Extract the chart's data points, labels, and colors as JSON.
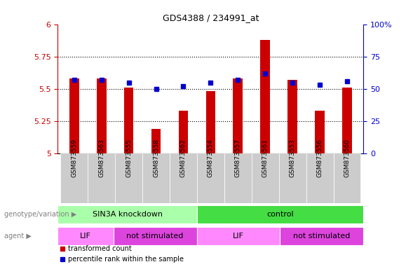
{
  "title": "GDS4388 / 234991_at",
  "samples": [
    "GSM873559",
    "GSM873563",
    "GSM873555",
    "GSM873558",
    "GSM873562",
    "GSM873554",
    "GSM873557",
    "GSM873561",
    "GSM873553",
    "GSM873556",
    "GSM873560"
  ],
  "red_values": [
    5.58,
    5.58,
    5.51,
    5.19,
    5.33,
    5.48,
    5.58,
    5.88,
    5.57,
    5.33,
    5.51
  ],
  "blue_values": [
    57,
    57,
    55,
    50,
    52,
    55,
    57,
    62,
    55,
    53,
    56
  ],
  "ylim_left": [
    5.0,
    6.0
  ],
  "ylim_right": [
    0,
    100
  ],
  "yticks_left": [
    5.0,
    5.25,
    5.5,
    5.75,
    6.0
  ],
  "yticks_right": [
    0,
    25,
    50,
    75,
    100
  ],
  "ytick_labels_left": [
    "5",
    "5.25",
    "5.5",
    "5.75",
    "6"
  ],
  "ytick_labels_right": [
    "0",
    "25",
    "50",
    "75",
    "100%"
  ],
  "groups": [
    {
      "label": "SIN3A knockdown",
      "start": 0,
      "end": 5,
      "color": "#AAFFAA"
    },
    {
      "label": "control",
      "start": 5,
      "end": 11,
      "color": "#44DD44"
    }
  ],
  "agents": [
    {
      "label": "LIF",
      "start": 0,
      "end": 2,
      "color": "#FF88FF"
    },
    {
      "label": "not stimulated",
      "start": 2,
      "end": 5,
      "color": "#DD44DD"
    },
    {
      "label": "LIF",
      "start": 5,
      "end": 8,
      "color": "#FF88FF"
    },
    {
      "label": "not stimulated",
      "start": 8,
      "end": 11,
      "color": "#DD44DD"
    }
  ],
  "bar_color": "#CC0000",
  "dot_color": "#0000CC",
  "background_color": "#ffffff",
  "left_axis_color": "#CC0000",
  "right_axis_color": "#0000CC",
  "sample_box_color": "#CCCCCC"
}
